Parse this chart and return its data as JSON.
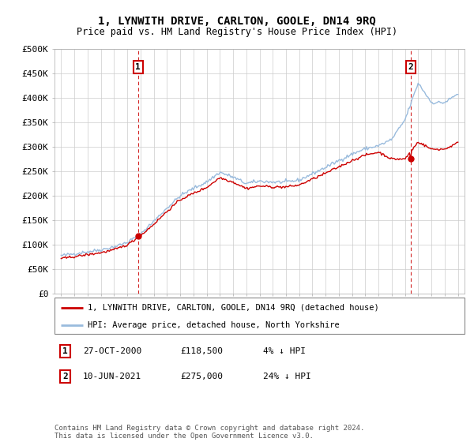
{
  "title": "1, LYNWITH DRIVE, CARLTON, GOOLE, DN14 9RQ",
  "subtitle": "Price paid vs. HM Land Registry's House Price Index (HPI)",
  "ylim": [
    0,
    500000
  ],
  "yticks": [
    0,
    50000,
    100000,
    150000,
    200000,
    250000,
    300000,
    350000,
    400000,
    450000,
    500000
  ],
  "ytick_labels": [
    "£0",
    "£50K",
    "£100K",
    "£150K",
    "£200K",
    "£250K",
    "£300K",
    "£350K",
    "£400K",
    "£450K",
    "£500K"
  ],
  "xlim_start": 1994.5,
  "xlim_end": 2025.5,
  "background_color": "#ffffff",
  "grid_color": "#cccccc",
  "sale1_x": 2000.82,
  "sale1_y": 118500,
  "sale1_label": "1",
  "sale2_x": 2021.44,
  "sale2_y": 275000,
  "sale2_label": "2",
  "legend_line1": "1, LYNWITH DRIVE, CARLTON, GOOLE, DN14 9RQ (detached house)",
  "legend_line2": "HPI: Average price, detached house, North Yorkshire",
  "annotation1_date": "27-OCT-2000",
  "annotation1_price": "£118,500",
  "annotation1_hpi": "4% ↓ HPI",
  "annotation2_date": "10-JUN-2021",
  "annotation2_price": "£275,000",
  "annotation2_hpi": "24% ↓ HPI",
  "footer": "Contains HM Land Registry data © Crown copyright and database right 2024.\nThis data is licensed under the Open Government Licence v3.0.",
  "line_color_property": "#cc0000",
  "line_color_hpi": "#99bbdd",
  "dashed_line_color": "#cc0000",
  "hpi_years": [
    1995,
    1996,
    1997,
    1998,
    1999,
    2000,
    2001,
    2002,
    2003,
    2004,
    2005,
    2006,
    2007,
    2008,
    2009,
    2010,
    2011,
    2012,
    2013,
    2014,
    2015,
    2016,
    2017,
    2018,
    2019,
    2020,
    2021,
    2022,
    2023,
    2024,
    2025
  ],
  "hpi_vals": [
    78000,
    82000,
    86000,
    90000,
    96000,
    105000,
    122000,
    148000,
    175000,
    200000,
    215000,
    228000,
    248000,
    238000,
    225000,
    230000,
    228000,
    228000,
    232000,
    245000,
    258000,
    272000,
    285000,
    296000,
    302000,
    315000,
    355000,
    430000,
    390000,
    390000,
    408000
  ],
  "prop_years": [
    1995,
    1996,
    1997,
    1998,
    1999,
    2000,
    2001,
    2002,
    2003,
    2004,
    2005,
    2006,
    2007,
    2008,
    2009,
    2010,
    2011,
    2012,
    2013,
    2014,
    2015,
    2016,
    2017,
    2018,
    2019,
    2020,
    2021,
    2022,
    2023,
    2024,
    2025
  ],
  "prop_vals": [
    72000,
    76000,
    80000,
    84000,
    90000,
    100000,
    118500,
    142000,
    168000,
    192000,
    205000,
    217000,
    237000,
    228000,
    215000,
    220000,
    218000,
    218000,
    222000,
    234000,
    246000,
    259000,
    272000,
    283000,
    289000,
    275000,
    275000,
    310000,
    295000,
    295000,
    308000
  ]
}
